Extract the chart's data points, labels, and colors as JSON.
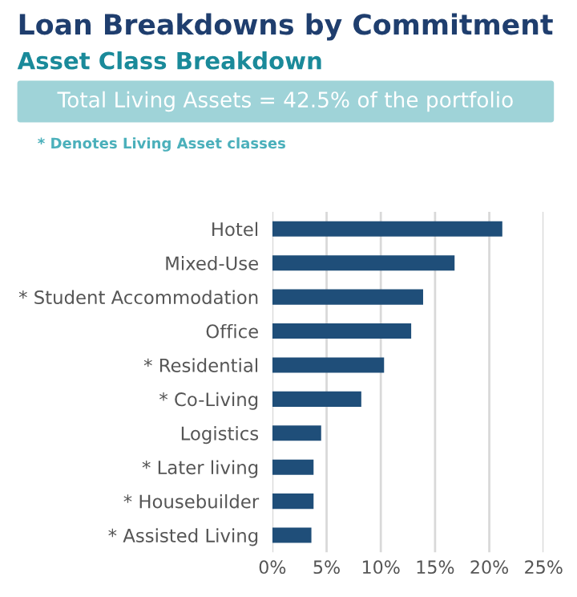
{
  "chart_data": {
    "type": "bar",
    "orientation": "horizontal",
    "title": "Loan Breakdowns by Commitment",
    "subtitle": "Asset Class Breakdown",
    "annotations": [
      "Total Living Assets = 42.5% of the portfolio",
      "* Denotes Living Asset classes"
    ],
    "categories": [
      "Hotel",
      "Mixed-Use",
      "* Student Accommodation",
      "Office",
      "* Residential",
      "* Co-Living",
      "Logistics",
      "* Later living",
      "* Housebuilder",
      "* Assisted Living"
    ],
    "values": [
      21.2,
      16.8,
      13.9,
      12.8,
      10.3,
      8.2,
      4.5,
      3.8,
      3.8,
      3.6
    ],
    "color": "#1f4e79",
    "xlim": [
      0,
      25
    ],
    "xticks": [
      {
        "value": 0,
        "label": "0%"
      },
      {
        "value": 5,
        "label": "5%"
      },
      {
        "value": 10,
        "label": "10%"
      },
      {
        "value": 15,
        "label": "15%"
      },
      {
        "value": 20,
        "label": "20%"
      },
      {
        "value": 25,
        "label": "25%"
      }
    ],
    "grid": "x",
    "legend": false
  }
}
